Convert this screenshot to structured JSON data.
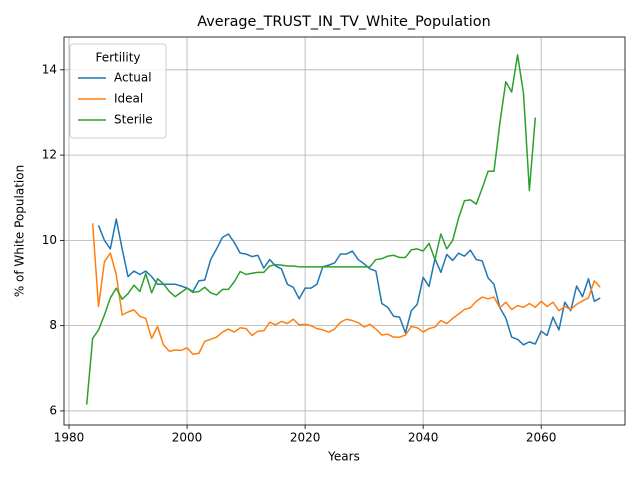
{
  "chart_data": {
    "type": "line",
    "title": "Average_TRUST_IN_TV_White_Population",
    "x_label": "Years",
    "y_label": "% of White Population",
    "legend_title": "Fertility",
    "legend": "upper left",
    "grid": true,
    "xlim": [
      1979.15,
      2074.2
    ],
    "ylim": [
      5.67,
      14.77
    ],
    "xticks": [
      1980,
      2000,
      2020,
      2040,
      2060
    ],
    "yticks": [
      6,
      8,
      10,
      12,
      14
    ],
    "x": [
      1983,
      1984,
      1985,
      1986,
      1987,
      1988,
      1989,
      1990,
      1991,
      1992,
      1993,
      1994,
      1995,
      1996,
      1997,
      1998,
      1999,
      2000,
      2001,
      2002,
      2003,
      2004,
      2005,
      2006,
      2007,
      2008,
      2009,
      2010,
      2011,
      2012,
      2013,
      2014,
      2015,
      2016,
      2017,
      2018,
      2019,
      2020,
      2021,
      2022,
      2023,
      2024,
      2025,
      2026,
      2027,
      2028,
      2029,
      2030,
      2031,
      2032,
      2033,
      2034,
      2035,
      2036,
      2037,
      2038,
      2039,
      2040,
      2041,
      2042,
      2043,
      2044,
      2045,
      2046,
      2047,
      2048,
      2049,
      2050,
      2051,
      2052,
      2053,
      2054,
      2055,
      2056,
      2057,
      2058,
      2059,
      2060,
      2061,
      2062,
      2063,
      2064,
      2065,
      2066,
      2067,
      2068,
      2069,
      2070
    ],
    "series": [
      {
        "name": "Actual",
        "color": "#1f77b4",
        "values": [
          null,
          null,
          10.35,
          10.0,
          9.8,
          10.5,
          9.8,
          9.15,
          9.28,
          9.2,
          9.28,
          9.15,
          8.97,
          8.97,
          8.97,
          8.97,
          8.93,
          8.88,
          8.8,
          9.05,
          9.07,
          9.55,
          9.8,
          10.07,
          10.15,
          9.95,
          9.7,
          9.68,
          9.62,
          9.65,
          9.35,
          9.55,
          9.4,
          9.33,
          8.97,
          8.9,
          8.63,
          8.88,
          8.88,
          8.97,
          9.38,
          9.42,
          9.47,
          9.68,
          9.68,
          9.75,
          9.55,
          9.45,
          9.33,
          9.28,
          8.52,
          8.43,
          8.22,
          8.2,
          7.83,
          8.35,
          8.5,
          9.13,
          8.92,
          9.57,
          9.25,
          9.67,
          9.53,
          9.7,
          9.63,
          9.77,
          9.55,
          9.52,
          9.12,
          8.97,
          8.42,
          8.18,
          7.73,
          7.68,
          7.55,
          7.62,
          7.57,
          7.87,
          7.77,
          8.2,
          7.9,
          8.55,
          8.35,
          8.93,
          8.68,
          9.1,
          8.57,
          8.65
        ]
      },
      {
        "name": "Ideal",
        "color": "#ff7f0e",
        "values": [
          null,
          10.4,
          8.45,
          9.5,
          9.7,
          9.2,
          8.25,
          8.32,
          8.37,
          8.22,
          8.17,
          7.7,
          7.98,
          7.55,
          7.4,
          7.43,
          7.42,
          7.48,
          7.33,
          7.35,
          7.63,
          7.68,
          7.73,
          7.85,
          7.92,
          7.85,
          7.95,
          7.93,
          7.77,
          7.87,
          7.88,
          8.08,
          8.02,
          8.1,
          8.05,
          8.15,
          8.02,
          8.03,
          8.0,
          7.93,
          7.9,
          7.85,
          7.92,
          8.08,
          8.15,
          8.12,
          8.07,
          7.97,
          8.03,
          7.92,
          7.78,
          7.8,
          7.73,
          7.73,
          7.78,
          7.98,
          7.95,
          7.85,
          7.93,
          7.97,
          8.12,
          8.05,
          8.17,
          8.27,
          8.38,
          8.42,
          8.57,
          8.67,
          8.63,
          8.67,
          8.42,
          8.55,
          8.38,
          8.47,
          8.43,
          8.52,
          8.43,
          8.57,
          8.45,
          8.55,
          8.35,
          8.45,
          8.38,
          8.5,
          8.58,
          8.65,
          9.05,
          8.9
        ]
      },
      {
        "name": "Sterile",
        "color": "#2ca02c",
        "values": [
          6.15,
          7.7,
          7.9,
          8.25,
          8.65,
          8.88,
          8.62,
          8.75,
          8.95,
          8.8,
          9.22,
          8.77,
          9.1,
          8.98,
          8.8,
          8.68,
          8.78,
          8.88,
          8.78,
          8.8,
          8.9,
          8.77,
          8.72,
          8.85,
          8.85,
          9.03,
          9.27,
          9.2,
          9.23,
          9.25,
          9.25,
          9.4,
          9.43,
          9.42,
          9.4,
          9.4,
          9.38,
          9.38,
          9.38,
          9.38,
          9.38,
          9.38,
          9.38,
          9.38,
          9.38,
          9.38,
          9.38,
          9.38,
          9.38,
          9.55,
          9.57,
          9.63,
          9.65,
          9.6,
          9.6,
          9.78,
          9.8,
          9.75,
          9.93,
          9.55,
          10.15,
          9.8,
          10.0,
          10.52,
          10.93,
          10.95,
          10.85,
          11.22,
          11.62,
          11.62,
          12.75,
          13.72,
          13.48,
          14.35,
          13.45,
          11.17,
          12.88,
          null,
          null,
          null,
          null,
          null,
          null,
          null,
          null,
          null,
          null,
          null
        ]
      }
    ]
  }
}
